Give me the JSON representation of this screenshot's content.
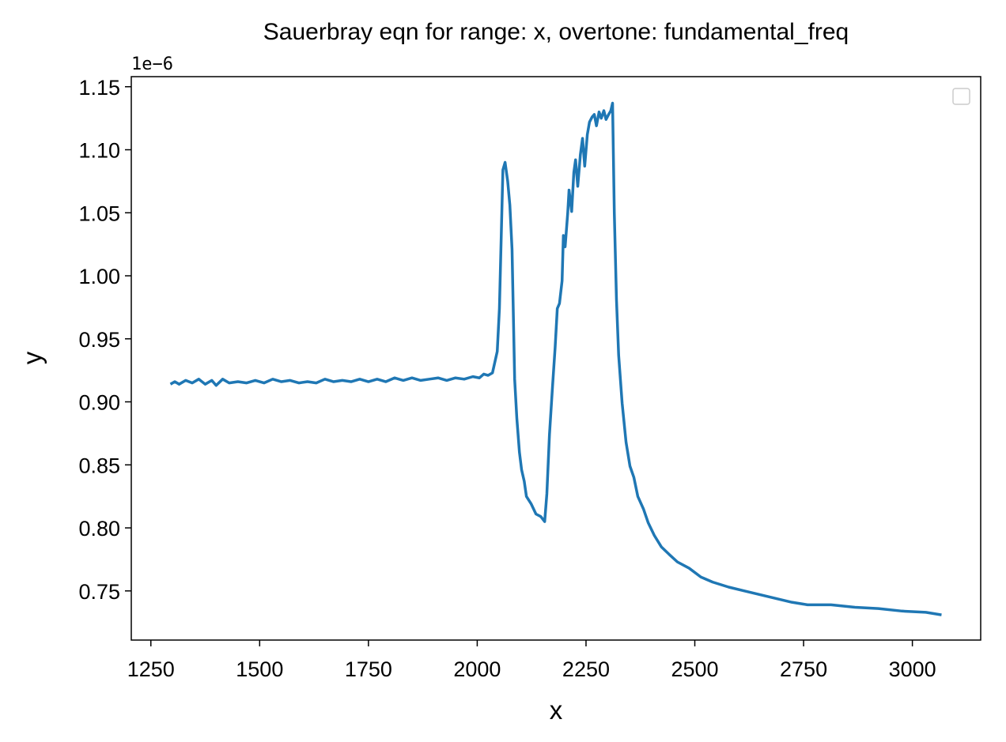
{
  "chart_data": {
    "type": "line",
    "title": "Sauerbray eqn for range: x, overtone: fundamental_freq",
    "x_label": "x",
    "y_label": "y",
    "offset_text": "1e−6",
    "color": "#1f77b4",
    "grid": false,
    "x": [
      1295,
      1305,
      1315,
      1330,
      1345,
      1360,
      1375,
      1390,
      1400,
      1415,
      1430,
      1450,
      1470,
      1490,
      1510,
      1530,
      1550,
      1570,
      1590,
      1610,
      1630,
      1650,
      1670,
      1690,
      1710,
      1730,
      1750,
      1770,
      1790,
      1810,
      1830,
      1850,
      1870,
      1890,
      1910,
      1930,
      1950,
      1970,
      1990,
      2005,
      2015,
      2025,
      2035,
      2046,
      2051,
      2059,
      2064,
      2070,
      2075,
      2080,
      2086,
      2091,
      2097,
      2102,
      2108,
      2113,
      2124,
      2135,
      2146,
      2155,
      2160,
      2166,
      2173,
      2179,
      2184,
      2189,
      2195,
      2198,
      2202,
      2208,
      2211,
      2217,
      2222,
      2226,
      2231,
      2237,
      2242,
      2247,
      2253,
      2258,
      2264,
      2269,
      2274,
      2280,
      2285,
      2291,
      2296,
      2302,
      2307,
      2311,
      2315,
      2320,
      2325,
      2333,
      2342,
      2351,
      2360,
      2369,
      2382,
      2393,
      2407,
      2423,
      2441,
      2460,
      2487,
      2514,
      2541,
      2578,
      2614,
      2650,
      2686,
      2723,
      2759,
      2813,
      2868,
      2922,
      2976,
      3031,
      3067
    ],
    "values": [
      0.914,
      0.916,
      0.914,
      0.917,
      0.915,
      0.918,
      0.914,
      0.917,
      0.913,
      0.918,
      0.915,
      0.916,
      0.915,
      0.917,
      0.915,
      0.918,
      0.916,
      0.917,
      0.915,
      0.916,
      0.915,
      0.918,
      0.916,
      0.917,
      0.916,
      0.918,
      0.916,
      0.918,
      0.916,
      0.919,
      0.917,
      0.919,
      0.917,
      0.918,
      0.919,
      0.917,
      0.919,
      0.918,
      0.92,
      0.919,
      0.922,
      0.921,
      0.923,
      0.94,
      0.974,
      1.084,
      1.09,
      1.075,
      1.056,
      1.021,
      0.918,
      0.887,
      0.86,
      0.846,
      0.837,
      0.825,
      0.819,
      0.811,
      0.809,
      0.805,
      0.827,
      0.874,
      0.912,
      0.943,
      0.974,
      0.978,
      0.996,
      1.032,
      1.023,
      1.05,
      1.068,
      1.051,
      1.082,
      1.092,
      1.071,
      1.096,
      1.109,
      1.087,
      1.112,
      1.122,
      1.126,
      1.128,
      1.119,
      1.13,
      1.125,
      1.131,
      1.124,
      1.128,
      1.131,
      1.137,
      1.05,
      0.981,
      0.937,
      0.899,
      0.868,
      0.849,
      0.84,
      0.825,
      0.815,
      0.804,
      0.794,
      0.785,
      0.779,
      0.773,
      0.768,
      0.761,
      0.757,
      0.753,
      0.75,
      0.747,
      0.744,
      0.741,
      0.739,
      0.739,
      0.737,
      0.736,
      0.734,
      0.733,
      0.731
    ],
    "xlim": [
      1205,
      3157
    ],
    "ylim": [
      0.711,
      1.158
    ],
    "xticks": [
      1250,
      1500,
      1750,
      2000,
      2250,
      2500,
      2750,
      3000
    ],
    "yticks": [
      0.75,
      {
        "value": 0.8,
        "label": "0.80"
      },
      0.85,
      {
        "value": 0.9,
        "label": "0.90"
      },
      0.95,
      {
        "value": 1.0,
        "label": "1.00"
      },
      1.05,
      {
        "value": 1.1,
        "label": "1.10"
      },
      1.15
    ]
  }
}
